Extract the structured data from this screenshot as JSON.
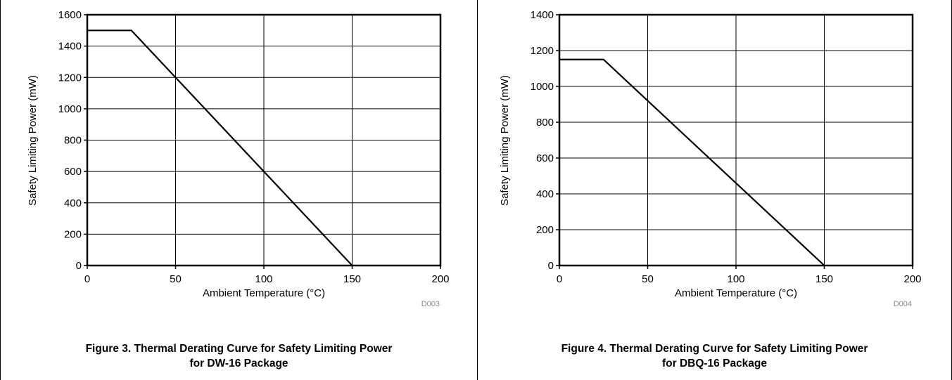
{
  "chart_data": [
    {
      "type": "line",
      "id_label": "D003",
      "xlabel": "Ambient Temperature (°C)",
      "ylabel": "Safety Limiting Power (mW)",
      "xlim": [
        0,
        200
      ],
      "ylim": [
        0,
        1600
      ],
      "x_ticks": [
        0,
        50,
        100,
        150,
        200
      ],
      "y_ticks": [
        0,
        200,
        400,
        600,
        800,
        1000,
        1200,
        1400,
        1600
      ],
      "grid": true,
      "series": [
        {
          "x": [
            0,
            25,
            150
          ],
          "y": [
            1500,
            1500,
            0
          ]
        }
      ],
      "caption": [
        "Figure 3. Thermal Derating Curve for Safety Limiting Power",
        "for DW-16 Package"
      ]
    },
    {
      "type": "line",
      "id_label": "D004",
      "xlabel": "Ambient Temperature (°C)",
      "ylabel": "Safety Limiting Power (mW)",
      "xlim": [
        0,
        200
      ],
      "ylim": [
        0,
        1400
      ],
      "x_ticks": [
        0,
        50,
        100,
        150,
        200
      ],
      "y_ticks": [
        0,
        200,
        400,
        600,
        800,
        1000,
        1200,
        1400
      ],
      "grid": true,
      "series": [
        {
          "x": [
            0,
            25,
            150
          ],
          "y": [
            1150,
            1150,
            0
          ]
        }
      ],
      "caption": [
        "Figure 4. Thermal Derating Curve for Safety Limiting Power",
        "for DBQ-16 Package"
      ]
    }
  ]
}
